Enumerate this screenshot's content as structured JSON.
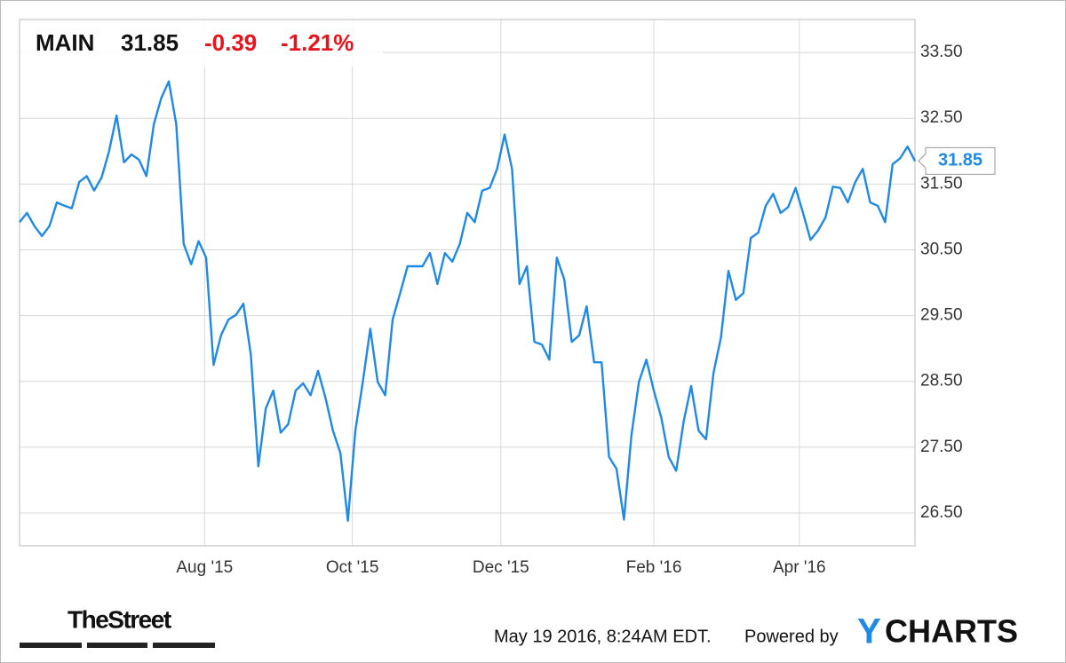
{
  "chart_data": {
    "type": "line",
    "header": {
      "ticker": "MAIN",
      "price": "31.85",
      "change": "-0.39",
      "change_pct": "-1.21%"
    },
    "series": [
      {
        "name": "MAIN",
        "color": "#1f8ae6",
        "values": [
          30.92,
          31.06,
          30.86,
          30.71,
          30.86,
          31.22,
          31.17,
          31.13,
          31.53,
          31.62,
          31.4,
          31.6,
          32.0,
          32.54,
          31.83,
          31.95,
          31.87,
          31.62,
          32.41,
          32.81,
          33.06,
          32.41,
          30.59,
          30.28,
          30.63,
          30.38,
          28.75,
          29.2,
          29.44,
          29.51,
          29.68,
          28.9,
          27.21,
          28.09,
          28.36,
          27.72,
          27.85,
          28.36,
          28.47,
          28.29,
          28.66,
          28.25,
          27.75,
          27.41,
          26.38,
          27.75,
          28.49,
          29.3,
          28.49,
          28.29,
          29.44,
          29.84,
          30.25,
          30.25,
          30.25,
          30.45,
          29.98,
          30.45,
          30.32,
          30.59,
          31.06,
          30.92,
          31.4,
          31.44,
          31.73,
          32.25,
          31.73,
          29.98,
          30.25,
          29.1,
          29.06,
          28.83,
          30.38,
          30.05,
          29.1,
          29.2,
          29.64,
          28.79,
          28.79,
          27.35,
          27.17,
          26.4,
          27.68,
          28.49,
          28.83,
          28.36,
          27.95,
          27.35,
          27.14,
          27.89,
          28.43,
          27.75,
          27.62,
          28.63,
          29.17,
          30.18,
          29.74,
          29.84,
          30.68,
          30.76,
          31.17,
          31.35,
          31.06,
          31.15,
          31.44,
          31.06,
          30.65,
          30.79,
          30.99,
          31.46,
          31.44,
          31.22,
          31.53,
          31.73,
          31.22,
          31.17,
          30.92,
          31.8,
          31.89,
          32.07,
          31.85
        ]
      }
    ],
    "xlim": [
      0,
      120
    ],
    "xticks": [
      {
        "value": 24.8,
        "label": "Aug '15"
      },
      {
        "value": 44.6,
        "label": "Oct '15"
      },
      {
        "value": 64.5,
        "label": "Dec '15"
      },
      {
        "value": 85,
        "label": "Feb '16"
      },
      {
        "value": 104.5,
        "label": "Apr '16"
      }
    ],
    "ylim": [
      26,
      34
    ],
    "yticks": [
      {
        "value": 26.5,
        "label": "26.50"
      },
      {
        "value": 27.5,
        "label": "27.50"
      },
      {
        "value": 28.5,
        "label": "28.50"
      },
      {
        "value": 29.5,
        "label": "29.50"
      },
      {
        "value": 30.5,
        "label": "30.50"
      },
      {
        "value": 31.5,
        "label": "31.50"
      },
      {
        "value": 32.5,
        "label": "32.50"
      },
      {
        "value": 33.5,
        "label": "33.50"
      }
    ],
    "grid": true,
    "footer": {
      "source": "TheStreet",
      "timestamp": "May 19 2016, 8:24AM EDT.",
      "powered": "Powered by",
      "brand_prefix": "Y",
      "brand_rest": "CHARTS"
    }
  }
}
